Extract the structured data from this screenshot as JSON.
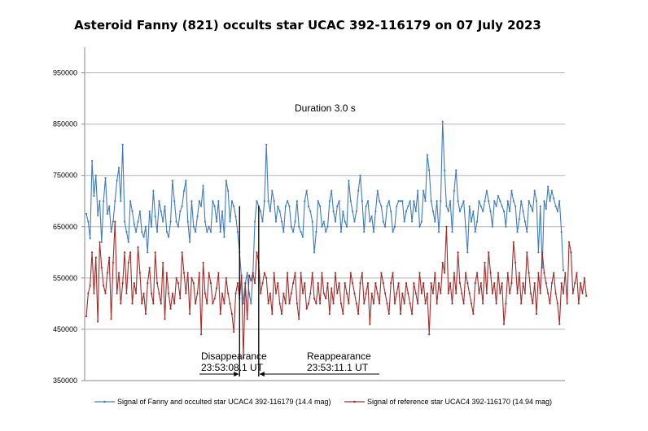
{
  "chart_data": {
    "type": "line",
    "title": "Asteroid Fanny (821) occults star UCAC 392-116179 on 07 July 2023",
    "xlabel": "",
    "ylabel": "",
    "ylim": [
      350000,
      1000000
    ],
    "yticks": [
      350000,
      450000,
      550000,
      650000,
      750000,
      850000,
      950000
    ],
    "ytick_labels": [
      "350000",
      "450000",
      "550000",
      "650000",
      "750000",
      "850000",
      "950000"
    ],
    "grid": true,
    "legend_position": "bottom",
    "annotations": {
      "duration": "Duration 3.0 s",
      "disappearance_label": "Disappearance",
      "disappearance_time": "23:53:08.1 UT",
      "reappearance_label": "Reappearance",
      "reappearance_time": "23:53:11.1 UT"
    },
    "event_index": {
      "disappearance": 80,
      "reappearance": 90
    },
    "series": [
      {
        "name": "Signal of Fanny and occulted star UCAC4 392-116179 (14.4 mag)",
        "color": "#3f7bc0",
        "values": [
          675000,
          660000,
          627000,
          778000,
          710000,
          750000,
          672000,
          700000,
          620000,
          700000,
          745000,
          675000,
          690000,
          640000,
          660000,
          700000,
          740000,
          765000,
          700000,
          810000,
          660000,
          640000,
          620000,
          700000,
          680000,
          655000,
          640000,
          660000,
          680000,
          640000,
          630000,
          650000,
          600000,
          680000,
          650000,
          720000,
          670000,
          640000,
          700000,
          680000,
          660000,
          690000,
          640000,
          630000,
          660000,
          740000,
          700000,
          660000,
          650000,
          680000,
          690000,
          720000,
          740000,
          660000,
          620000,
          700000,
          650000,
          640000,
          670000,
          700000,
          690000,
          730000,
          660000,
          640000,
          650000,
          640000,
          700000,
          690000,
          660000,
          700000,
          640000,
          680000,
          630000,
          740000,
          720000,
          660000,
          700000,
          690000,
          670000,
          640000,
          600000,
          550000,
          500000,
          540000,
          560000,
          520000,
          500000,
          560000,
          660000,
          700000,
          690000,
          680000,
          660000,
          700000,
          810000,
          700000,
          680000,
          720000,
          700000,
          660000,
          690000,
          680000,
          660000,
          640000,
          690000,
          700000,
          690000,
          650000,
          640000,
          660000,
          700000,
          650000,
          640000,
          630000,
          700000,
          720000,
          690000,
          680000,
          660000,
          600000,
          640000,
          700000,
          690000,
          650000,
          660000,
          640000,
          650000,
          700000,
          720000,
          680000,
          660000,
          690000,
          700000,
          640000,
          680000,
          660000,
          650000,
          740000,
          700000,
          680000,
          660000,
          680000,
          720000,
          750000,
          700000,
          640000,
          690000,
          700000,
          660000,
          670000,
          640000,
          680000,
          720000,
          700000,
          690000,
          660000,
          650000,
          690000,
          700000,
          680000,
          640000,
          650000,
          690000,
          700000,
          700000,
          700000,
          660000,
          680000,
          690000,
          700000,
          660000,
          700000,
          680000,
          720000,
          650000,
          660000,
          720000,
          700000,
          790000,
          760000,
          700000,
          680000,
          660000,
          700000,
          640000,
          700000,
          855000,
          760000,
          690000,
          680000,
          700000,
          640000,
          720000,
          760000,
          700000,
          680000,
          690000,
          700000,
          650000,
          600000,
          690000,
          660000,
          680000,
          640000,
          660000,
          700000,
          690000,
          680000,
          700000,
          720000,
          700000,
          680000,
          650000,
          700000,
          690000,
          710000,
          700000,
          690000,
          680000,
          650000,
          700000,
          680000,
          720000,
          700000,
          690000,
          640000,
          665000,
          700000,
          680000,
          660000,
          640000,
          700000,
          690000,
          680000,
          720000,
          700000,
          600000,
          690000,
          570000,
          700000,
          685000,
          728000,
          700000,
          720000,
          705000,
          690000,
          680000,
          700000,
          640000,
          565000
        ]
      },
      {
        "name": "Signal of reference star UCAC4 392-116170 (14.94 mag)",
        "color": "#a52a2a",
        "values": [
          475000,
          520000,
          535000,
          600000,
          520000,
          590000,
          465000,
          620000,
          570000,
          535000,
          520000,
          560000,
          590000,
          470000,
          580000,
          660000,
          520000,
          560000,
          500000,
          540000,
          600000,
          520000,
          580000,
          600000,
          500000,
          540000,
          520000,
          610000,
          560000,
          500000,
          520000,
          480000,
          540000,
          570000,
          520000,
          500000,
          600000,
          540000,
          520000,
          500000,
          580000,
          470000,
          560000,
          520000,
          490000,
          520000,
          500000,
          550000,
          540000,
          510000,
          600000,
          560000,
          520000,
          560000,
          480000,
          550000,
          540000,
          500000,
          520000,
          560000,
          440000,
          580000,
          520000,
          500000,
          560000,
          540000,
          500000,
          510000,
          530000,
          560000,
          480000,
          520000,
          500000,
          550000,
          520000,
          500000,
          480000,
          445000,
          520000,
          540000,
          510000,
          555000,
          395000,
          540000,
          470000,
          555000,
          545000,
          560000,
          540000,
          600000,
          580000,
          520000,
          540000,
          560000,
          550000,
          500000,
          520000,
          480000,
          560000,
          520000,
          540000,
          500000,
          480000,
          520000,
          500000,
          560000,
          500000,
          520000,
          540000,
          560000,
          500000,
          470000,
          560000,
          520000,
          540000,
          490000,
          500000,
          520000,
          560000,
          510000,
          500000,
          540000,
          500000,
          560000,
          520000,
          510000,
          540000,
          480000,
          530000,
          500000,
          560000,
          520000,
          540000,
          500000,
          480000,
          540000,
          520000,
          500000,
          560000,
          540000,
          520000,
          500000,
          480000,
          540000,
          560000,
          500000,
          520000,
          540000,
          460000,
          520000,
          500000,
          540000,
          520000,
          500000,
          560000,
          540000,
          520000,
          500000,
          480000,
          540000,
          560000,
          500000,
          520000,
          540000,
          480000,
          520000,
          500000,
          540000,
          520000,
          500000,
          480000,
          540000,
          520000,
          500000,
          560000,
          520000,
          540000,
          500000,
          520000,
          440000,
          540000,
          520000,
          560000,
          500000,
          540000,
          520000,
          580000,
          560000,
          650000,
          520000,
          540000,
          500000,
          560000,
          520000,
          600000,
          540000,
          520000,
          500000,
          560000,
          540000,
          520000,
          500000,
          480000,
          540000,
          560000,
          520000,
          540000,
          500000,
          580000,
          520000,
          600000,
          560000,
          520000,
          540000,
          500000,
          560000,
          520000,
          540000,
          460000,
          500000,
          560000,
          520000,
          540000,
          620000,
          580000,
          520000,
          560000,
          500000,
          540000,
          520000,
          600000,
          560000,
          520000,
          500000,
          540000,
          480000,
          560000,
          520000,
          600000,
          560000,
          540000,
          520000,
          500000,
          540000,
          560000,
          520000,
          500000,
          460000,
          540000,
          520000,
          560000,
          500000,
          620000,
          600000,
          520000,
          540000,
          560000,
          500000,
          540000,
          520000,
          550000,
          515000
        ]
      }
    ]
  }
}
